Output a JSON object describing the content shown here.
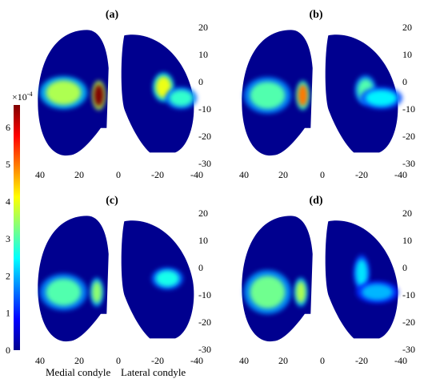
{
  "chart_data": [
    {
      "type": "heatmap",
      "panel_label": "(a)",
      "x_ticks": [
        "40",
        "20",
        "0",
        "-20",
        "-40"
      ],
      "y_ticks": [
        "20",
        "10",
        "0",
        "-10",
        "-20",
        "-30"
      ],
      "xlim": [
        40,
        -40
      ],
      "ylim": [
        -30,
        20
      ],
      "hotspots": [
        {
          "x": 28,
          "y": -4,
          "w": 9,
          "h": 4.5,
          "value": 3.6
        },
        {
          "x": 10,
          "y": -5,
          "w": 2.5,
          "h": 4,
          "value": 6.6
        },
        {
          "x": -23,
          "y": -2,
          "w": 4,
          "h": 4,
          "value": 4.0
        },
        {
          "x": -32,
          "y": -6,
          "w": 6,
          "h": 3,
          "value": 2.8
        }
      ]
    },
    {
      "type": "heatmap",
      "panel_label": "(b)",
      "x_ticks": [
        "40",
        "20",
        "0",
        "-20",
        "-40"
      ],
      "y_ticks": [
        "20",
        "10",
        "0",
        "-10",
        "-20",
        "-30"
      ],
      "xlim": [
        40,
        -40
      ],
      "ylim": [
        -30,
        20
      ],
      "hotspots": [
        {
          "x": 28,
          "y": -5,
          "w": 9,
          "h": 5,
          "value": 3.0
        },
        {
          "x": 10,
          "y": -5,
          "w": 2.5,
          "h": 4,
          "value": 5.0
        },
        {
          "x": -22,
          "y": -3,
          "w": 4,
          "h": 4,
          "value": 3.0
        },
        {
          "x": -30,
          "y": -6,
          "w": 8,
          "h": 3,
          "value": 2.4
        }
      ]
    },
    {
      "type": "heatmap",
      "panel_label": "(c)",
      "x_ticks": [
        "40",
        "20",
        "0",
        "-20",
        "-40"
      ],
      "y_ticks": [
        "20",
        "10",
        "0",
        "-10",
        "-20",
        "-30"
      ],
      "xlim": [
        40,
        -40
      ],
      "ylim": [
        -30,
        20
      ],
      "hotspots": [
        {
          "x": 28,
          "y": -9,
          "w": 9,
          "h": 5,
          "value": 3.0
        },
        {
          "x": 11,
          "y": -9,
          "w": 2.5,
          "h": 4,
          "value": 3.4
        },
        {
          "x": -25,
          "y": -4,
          "w": 6,
          "h": 3,
          "value": 2.6
        }
      ]
    },
    {
      "type": "heatmap",
      "panel_label": "(d)",
      "x_ticks": [
        "40",
        "20",
        "0",
        "-20",
        "-40"
      ],
      "y_ticks": [
        "20",
        "10",
        "0",
        "-10",
        "-20",
        "-30"
      ],
      "xlim": [
        40,
        -40
      ],
      "ylim": [
        -30,
        20
      ],
      "hotspots": [
        {
          "x": 28,
          "y": -9,
          "w": 9,
          "h": 6,
          "value": 3.2
        },
        {
          "x": 11,
          "y": -9,
          "w": 2.5,
          "h": 4,
          "value": 3.6
        },
        {
          "x": -20,
          "y": -2,
          "w": 3,
          "h": 5,
          "value": 2.3
        },
        {
          "x": -28,
          "y": -9,
          "w": 8,
          "h": 3,
          "value": 2.0
        }
      ]
    }
  ],
  "colorbar": {
    "ticks": [
      "0",
      "1",
      "2",
      "3",
      "4",
      "5",
      "6"
    ],
    "min": 0,
    "max": 6.6,
    "multiplier_base": "×10",
    "multiplier_exponent": "-4",
    "colormap": "jet"
  },
  "x_annotations": {
    "left": "Medial condyle",
    "right": "Lateral condyle"
  },
  "colors": {
    "background_low": "#00008f",
    "high": "#800000"
  }
}
